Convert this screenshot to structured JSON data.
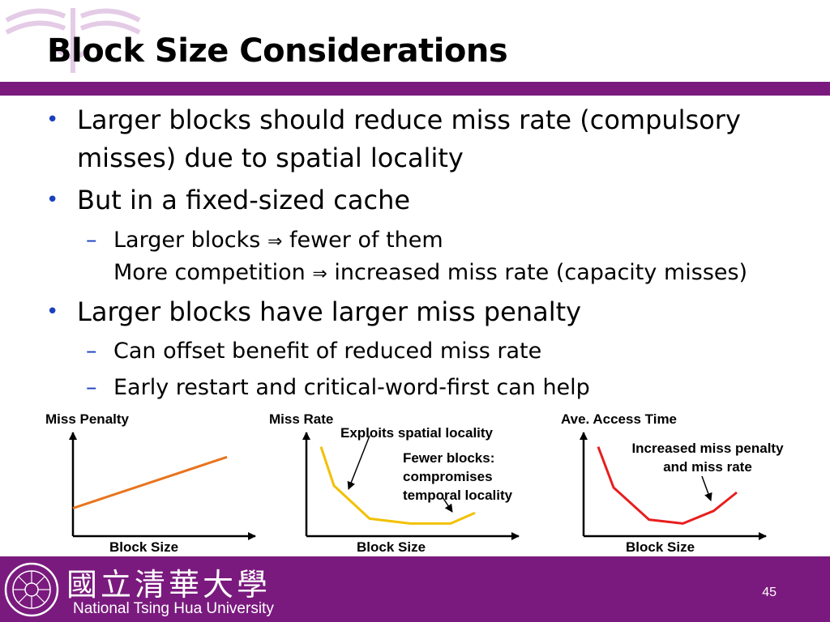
{
  "slide": {
    "title": "Block Size Considerations",
    "page_number": "45"
  },
  "bullets": {
    "b1_line1": "Larger blocks should reduce miss rate (compulsory",
    "b1_line2": "misses) due to spatial locality",
    "b2": "But in a fixed-sized cache",
    "b2_sub1_a": "Larger blocks",
    "b2_sub1_b": "fewer of them",
    "b2_sub2_a": "More competition",
    "b2_sub2_b": "increased miss rate (capacity misses)",
    "b3": "Larger blocks have larger miss penalty",
    "b3_sub1": "Can offset benefit of reduced miss rate",
    "b3_sub2": "Early restart and critical-word-first can help",
    "bullet_glyph": "•",
    "dash_glyph": "–",
    "implies_glyph": "⇒"
  },
  "graphs": {
    "miss_penalty": {
      "ylabel": "Miss Penalty",
      "xlabel": "Block Size",
      "color": "#e8741e"
    },
    "miss_rate": {
      "ylabel": "Miss Rate",
      "xlabel": "Block Size",
      "color": "#f2c100",
      "note1": "Exploits spatial locality",
      "note2_l1": "Fewer blocks:",
      "note2_l2": "compromises",
      "note2_l3": "temporal locality"
    },
    "access_time": {
      "ylabel": "Ave. Access Time",
      "xlabel": "Block Size",
      "color": "#e81e1e",
      "note_l1": "Increased miss penalty",
      "note_l2": "and miss rate"
    }
  },
  "chart_data": [
    {
      "type": "line",
      "title": "",
      "ylabel": "Miss Penalty",
      "xlabel": "Block Size",
      "ticks": "none",
      "x": [
        0,
        1
      ],
      "values": [
        0.3,
        0.85
      ]
    },
    {
      "type": "line",
      "title": "",
      "ylabel": "Miss Rate",
      "xlabel": "Block Size",
      "ticks": "none",
      "x": [
        0,
        0.08,
        0.3,
        0.55,
        0.8,
        0.95
      ],
      "values": [
        0.92,
        0.52,
        0.18,
        0.13,
        0.13,
        0.24
      ]
    },
    {
      "type": "line",
      "title": "",
      "ylabel": "Ave. Access Time",
      "xlabel": "Block Size",
      "ticks": "none",
      "x": [
        0,
        0.1,
        0.33,
        0.55,
        0.75,
        0.9
      ],
      "values": [
        0.92,
        0.5,
        0.17,
        0.13,
        0.26,
        0.45
      ]
    }
  ],
  "footer": {
    "university_cn": "國立清華大學",
    "university_en": "National Tsing Hua University"
  }
}
